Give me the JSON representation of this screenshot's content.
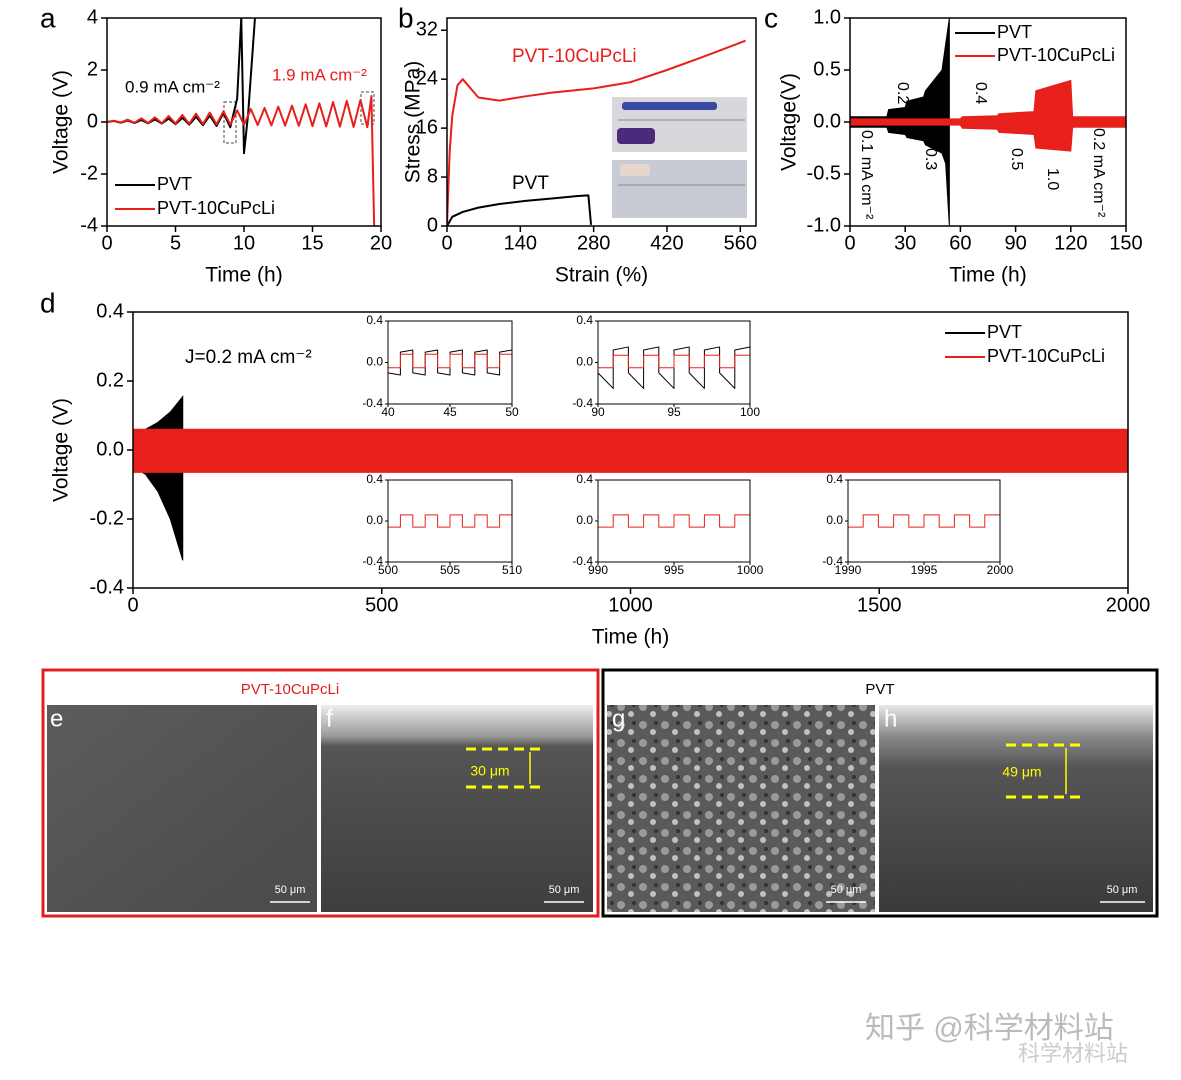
{
  "chart_data": [
    {
      "type": "line",
      "xlabel": "Time (h)",
      "ylabel": "Voltage (V)",
      "xlim": [
        0,
        20
      ],
      "ylim": [
        -4,
        4
      ],
      "xticks": [
        0,
        5,
        10,
        15,
        20
      ],
      "yticks": [
        -4,
        -2,
        0,
        2,
        4
      ],
      "legend": "lower left",
      "annotations": [
        {
          "text": "0.9 mA cm⁻²",
          "color": "#000000"
        },
        {
          "text": "1.9 mA cm⁻²",
          "color": "#e8201c"
        }
      ],
      "series": [
        {
          "name": "PVT",
          "color": "#000000",
          "x": [
            0,
            0.5,
            1,
            1.5,
            2,
            2.5,
            3,
            3.5,
            4,
            4.5,
            5,
            5.5,
            6,
            6.5,
            7,
            7.5,
            8,
            8.5,
            9,
            9.5,
            9.8,
            10,
            10.3,
            10.8
          ],
          "values": [
            0,
            0.04,
            -0.03,
            0.06,
            -0.04,
            0.08,
            -0.05,
            0.1,
            -0.06,
            0.13,
            -0.08,
            0.16,
            -0.1,
            0.2,
            -0.12,
            0.25,
            -0.15,
            0.35,
            -0.2,
            0.9,
            4,
            -1.2,
            0.3,
            4
          ]
        },
        {
          "name": "PVT-10CuPcLi",
          "color": "#e8201c",
          "x": [
            0,
            0.5,
            1,
            1.5,
            2,
            2.5,
            3,
            3.5,
            4,
            4.5,
            5,
            5.5,
            6,
            6.5,
            7,
            7.5,
            8,
            8.5,
            9,
            9.5,
            10,
            10.5,
            11,
            11.5,
            12,
            12.5,
            13,
            13.5,
            14,
            14.5,
            15,
            15.5,
            16,
            16.5,
            17,
            17.5,
            18,
            18.5,
            19,
            19.3,
            19.5
          ],
          "values": [
            0,
            0.05,
            -0.02,
            0.09,
            -0.03,
            0.14,
            -0.04,
            0.18,
            -0.05,
            0.23,
            -0.06,
            0.27,
            -0.07,
            0.32,
            -0.08,
            0.36,
            -0.09,
            0.41,
            -0.1,
            0.45,
            -0.11,
            0.5,
            -0.12,
            0.54,
            -0.13,
            0.59,
            -0.14,
            0.63,
            -0.15,
            0.68,
            -0.16,
            0.72,
            -0.17,
            0.77,
            -0.18,
            0.81,
            -0.19,
            0.85,
            -0.2,
            1.0,
            -4
          ]
        }
      ]
    },
    {
      "type": "line",
      "xlabel": "Strain (%)",
      "ylabel": "Stress (MPa)",
      "xlim": [
        0,
        590
      ],
      "ylim": [
        0,
        34
      ],
      "xticks": [
        0,
        140,
        280,
        420,
        560
      ],
      "yticks": [
        0,
        8,
        16,
        24,
        32
      ],
      "annotations": [
        {
          "text": "PVT-10CuPcLi",
          "color": "#e8201c"
        },
        {
          "text": "PVT",
          "color": "#000000"
        }
      ],
      "series": [
        {
          "color": "#000000",
          "x": [
            0,
            10,
            30,
            60,
            100,
            150,
            200,
            250,
            270,
            275
          ],
          "values": [
            0,
            1.5,
            2.3,
            3,
            3.6,
            4.1,
            4.5,
            4.9,
            5.0,
            0.2
          ]
        },
        {
          "color": "#e8201c",
          "x": [
            0,
            5,
            10,
            20,
            30,
            40,
            60,
            100,
            150,
            200,
            280,
            350,
            420,
            500,
            570
          ],
          "values": [
            0,
            12,
            18,
            23,
            24,
            23,
            21,
            20.5,
            21.2,
            21.8,
            22.5,
            23.5,
            25.5,
            28,
            30.3
          ]
        }
      ]
    },
    {
      "type": "band",
      "xlabel": "Time (h)",
      "ylabel": "Voltage(V)",
      "xlim": [
        0,
        150
      ],
      "ylim": [
        -1,
        1
      ],
      "xticks": [
        0,
        30,
        60,
        90,
        120,
        150
      ],
      "yticks": [
        {
          "value": -1,
          "label": "-1.0"
        },
        -0.5,
        {
          "value": 0,
          "label": "0.0"
        },
        0.5,
        {
          "value": 1,
          "label": "1.0"
        }
      ],
      "legend": "upper right",
      "annotations": [
        {
          "text": "0.1 mA cm⁻²"
        },
        {
          "text": "0.2"
        },
        {
          "text": "0.3"
        },
        {
          "text": "0.4"
        },
        {
          "text": "0.5"
        },
        {
          "text": "1.0"
        },
        {
          "text": "0.2 mA cm⁻²"
        }
      ],
      "series": [
        {
          "name": "PVT",
          "color": "#000000",
          "x": [
            0,
            20,
            21,
            30,
            31,
            40,
            41,
            50,
            52,
            54
          ],
          "high": [
            0.05,
            0.05,
            0.12,
            0.14,
            0.2,
            0.24,
            0.3,
            0.5,
            0.75,
            1.0
          ],
          "low": [
            -0.05,
            -0.05,
            -0.1,
            -0.12,
            -0.15,
            -0.18,
            -0.22,
            -0.3,
            -0.4,
            -1.0
          ]
        },
        {
          "name": "PVT-10CuPcLi",
          "color": "#e8201c",
          "x": [
            0,
            60,
            61,
            80,
            81,
            100,
            101,
            120,
            121,
            150
          ],
          "high": [
            0.03,
            0.03,
            0.05,
            0.06,
            0.08,
            0.1,
            0.3,
            0.4,
            0.05,
            0.05
          ],
          "low": [
            -0.03,
            -0.03,
            -0.06,
            -0.07,
            -0.1,
            -0.12,
            -0.25,
            -0.28,
            -0.05,
            -0.05
          ]
        }
      ]
    },
    {
      "type": "band",
      "xlabel": "Time (h)",
      "ylabel": "Voltage (V)",
      "xlim": [
        0,
        2000
      ],
      "ylim": [
        -0.4,
        0.4
      ],
      "xticks": [
        0,
        500,
        1000,
        1500,
        2000
      ],
      "yticks": [
        -0.4,
        -0.2,
        {
          "value": 0,
          "label": "0.0"
        },
        0.2,
        0.4
      ],
      "legend": "upper right",
      "annotations": [
        {
          "text": "J=0.2 mA cm⁻²"
        }
      ],
      "series": [
        {
          "name": "PVT",
          "color": "#000000",
          "x": [
            0,
            25,
            50,
            75,
            100
          ],
          "high": [
            0.05,
            0.06,
            0.08,
            0.11,
            0.155
          ],
          "low": [
            -0.05,
            -0.07,
            -0.12,
            -0.2,
            -0.32
          ]
        },
        {
          "name": "PVT-10CuPcLi",
          "color": "#e8201c",
          "x": [
            0,
            2000
          ],
          "high": [
            0.06,
            0.06
          ],
          "low": [
            -0.065,
            -0.065
          ]
        }
      ]
    },
    {
      "type": "line",
      "xlim": [
        40,
        50
      ],
      "ylim": [
        -0.4,
        0.4
      ],
      "xticks": [
        40,
        45,
        50
      ],
      "yticks": [
        -0.4,
        {
          "value": 0,
          "label": "0.0"
        },
        0.4
      ],
      "series": [
        {
          "color": "#000000",
          "x": [
            40,
            41,
            41,
            42,
            42,
            43,
            43,
            44,
            44,
            45,
            45,
            46,
            46,
            47,
            47,
            48,
            48,
            49,
            49,
            50
          ],
          "values": [
            -0.1,
            -0.12,
            0.1,
            0.12,
            -0.1,
            -0.12,
            0.1,
            0.12,
            -0.1,
            -0.12,
            0.1,
            0.12,
            -0.1,
            -0.12,
            0.1,
            0.12,
            -0.1,
            -0.12,
            0.1,
            0.12
          ]
        },
        {
          "color": "#e8201c",
          "x": [
            40,
            41,
            41,
            42,
            42,
            43,
            43,
            44,
            44,
            45,
            45,
            46,
            46,
            47,
            47,
            48,
            48,
            49,
            49,
            50
          ],
          "values": [
            -0.05,
            -0.05,
            0.08,
            0.08,
            -0.05,
            -0.05,
            0.08,
            0.08,
            -0.05,
            -0.05,
            0.08,
            0.08,
            -0.05,
            -0.05,
            0.08,
            0.08,
            -0.05,
            -0.05,
            0.08,
            0.08
          ]
        }
      ]
    },
    {
      "type": "line",
      "xlim": [
        90,
        100
      ],
      "ylim": [
        -0.4,
        0.4
      ],
      "xticks": [
        90,
        95,
        100
      ],
      "yticks": [
        -0.4,
        {
          "value": 0,
          "label": "0.0"
        },
        0.4
      ],
      "series": [
        {
          "color": "#000000",
          "x": [
            90,
            91,
            91,
            92,
            92,
            93,
            93,
            94,
            94,
            95,
            95,
            96,
            96,
            97,
            97,
            98,
            98,
            99,
            99,
            100
          ],
          "values": [
            -0.1,
            -0.25,
            0.12,
            0.15,
            -0.1,
            -0.25,
            0.12,
            0.15,
            -0.1,
            -0.25,
            0.12,
            0.15,
            -0.1,
            -0.25,
            0.12,
            0.15,
            -0.1,
            -0.25,
            0.12,
            0.15
          ]
        },
        {
          "color": "#e8201c",
          "x": [
            90,
            91,
            91,
            92,
            92,
            93,
            93,
            94,
            94,
            95,
            95,
            96,
            96,
            97,
            97,
            98,
            98,
            99,
            99,
            100
          ],
          "values": [
            -0.05,
            -0.05,
            0.07,
            0.07,
            -0.05,
            -0.05,
            0.07,
            0.07,
            -0.05,
            -0.05,
            0.07,
            0.07,
            -0.05,
            -0.05,
            0.07,
            0.07,
            -0.05,
            -0.05,
            0.07,
            0.07
          ]
        }
      ]
    },
    {
      "type": "line",
      "xlim": [
        500,
        510
      ],
      "ylim": [
        -0.4,
        0.4
      ],
      "xticks": [
        500,
        505,
        510
      ],
      "yticks": [
        -0.4,
        {
          "value": 0,
          "label": "0.0"
        },
        0.4
      ],
      "series": [
        {
          "color": "#e8201c",
          "x": [
            500,
            501,
            501,
            502,
            502,
            503,
            503,
            504,
            504,
            505,
            505,
            506,
            506,
            507,
            507,
            508,
            508,
            509,
            509,
            510
          ],
          "values": [
            -0.06,
            -0.06,
            0.06,
            0.06,
            -0.06,
            -0.06,
            0.06,
            0.06,
            -0.06,
            -0.06,
            0.06,
            0.06,
            -0.06,
            -0.06,
            0.06,
            0.06,
            -0.06,
            -0.06,
            0.06,
            0.06
          ]
        }
      ]
    },
    {
      "type": "line",
      "xlim": [
        990,
        1000
      ],
      "ylim": [
        -0.4,
        0.4
      ],
      "xticks": [
        990,
        995,
        1000
      ],
      "yticks": [
        -0.4,
        {
          "value": 0,
          "label": "0.0"
        },
        0.4
      ],
      "series": [
        {
          "color": "#e8201c",
          "x": [
            990,
            991,
            991,
            992,
            992,
            993,
            993,
            994,
            994,
            995,
            995,
            996,
            996,
            997,
            997,
            998,
            998,
            999,
            999,
            1000
          ],
          "values": [
            -0.06,
            -0.06,
            0.06,
            0.06,
            -0.06,
            -0.06,
            0.06,
            0.06,
            -0.06,
            -0.06,
            0.06,
            0.06,
            -0.06,
            -0.06,
            0.06,
            0.06,
            -0.06,
            -0.06,
            0.06,
            0.06
          ]
        }
      ]
    },
    {
      "type": "line",
      "xlim": [
        1990,
        2000
      ],
      "ylim": [
        -0.4,
        0.4
      ],
      "xticks": [
        1990,
        1995,
        2000
      ],
      "yticks": [
        -0.4,
        {
          "value": 0,
          "label": "0.0"
        },
        0.4
      ],
      "series": [
        {
          "color": "#e8201c",
          "x": [
            1990,
            1991,
            1991,
            1992,
            1992,
            1993,
            1993,
            1994,
            1994,
            1995,
            1995,
            1996,
            1996,
            1997,
            1997,
            1998,
            1998,
            1999,
            1999,
            2000
          ],
          "values": [
            -0.06,
            -0.06,
            0.06,
            0.06,
            -0.06,
            -0.06,
            0.06,
            0.06,
            -0.06,
            -0.06,
            0.06,
            0.06,
            -0.06,
            -0.06,
            0.06,
            0.06,
            -0.06,
            -0.06,
            0.06,
            0.06
          ]
        }
      ]
    }
  ],
  "panels": {
    "labels": [
      "a",
      "b",
      "c",
      "d",
      "e",
      "f",
      "g",
      "h"
    ]
  },
  "sem": {
    "groups": [
      {
        "title": "PVT-10CuPcLi",
        "color": "#e02020"
      },
      {
        "title": "PVT",
        "color": "#000000"
      }
    ],
    "scale_bars": [
      "50 μm",
      "50 μm",
      "50 μm",
      "50 μm"
    ],
    "thickness": [
      "30 μm",
      "49 μm"
    ]
  },
  "watermark": {
    "main": "知乎 @科学材料站",
    "sub": "科学材料站"
  }
}
